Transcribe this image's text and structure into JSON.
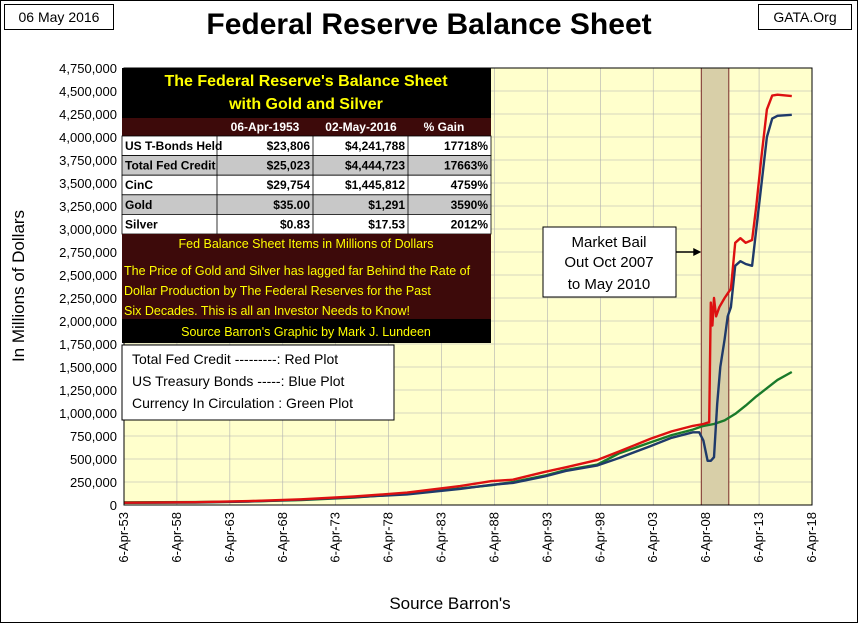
{
  "header": {
    "date": "06 May 2016",
    "site": "GATA.Org"
  },
  "chart_data": {
    "type": "line",
    "title": "Federal Reserve Balance Sheet",
    "xlabel": "Source Barron's",
    "ylabel": "In  Millions of Dollars",
    "xlim": [
      1953.26,
      2018.26
    ],
    "ylim": [
      0,
      4750000
    ],
    "y_ticks": [
      0,
      250000,
      500000,
      750000,
      1000000,
      1250000,
      1500000,
      1750000,
      2000000,
      2250000,
      2500000,
      2750000,
      3000000,
      3250000,
      3500000,
      3750000,
      4000000,
      4250000,
      4500000,
      4750000
    ],
    "y_tick_labels": [
      "0",
      "250,000",
      "500,000",
      "750,000",
      "1,000,000",
      "1,250,000",
      "1,500,000",
      "1,750,000",
      "2,000,000",
      "2,250,000",
      "2,500,000",
      "2,750,000",
      "3,000,000",
      "3,250,000",
      "3,500,000",
      "3,750,000",
      "4,000,000",
      "4,250,000",
      "4,500,000",
      "4,750,000"
    ],
    "x_ticks": [
      1953.26,
      1958.26,
      1963.26,
      1968.26,
      1973.26,
      1978.26,
      1983.26,
      1988.26,
      1993.26,
      1998.26,
      2003.26,
      2008.26,
      2013.26,
      2018.26
    ],
    "x_tick_labels": [
      "6-Apr-53",
      "6-Apr-58",
      "6-Apr-63",
      "6-Apr-68",
      "6-Apr-73",
      "6-Apr-78",
      "6-Apr-83",
      "6-Apr-88",
      "6-Apr-93",
      "6-Apr-98",
      "6-Apr-03",
      "6-Apr-08",
      "6-Apr-13",
      "6-Apr-18"
    ],
    "shaded_region": {
      "x_start": 2007.8,
      "x_end": 2010.4,
      "label": "Market Bail Out Oct 2007 to May 2010"
    },
    "annotation": {
      "lines": [
        "Market Bail",
        "Out Oct 2007",
        "to May 2010"
      ],
      "arrow_to_x": 2007.8,
      "arrow_at_y": 2750000
    },
    "series": [
      {
        "name": "Currency In Circulation",
        "color": "#1a7a2a",
        "x": [
          1953.26,
          1960,
          1965,
          1970,
          1975,
          1980,
          1985,
          1988,
          1990,
          1993,
          1995,
          1998,
          2000,
          2003,
          2005,
          2007,
          2008,
          2009,
          2010,
          2011,
          2012,
          2013,
          2014,
          2015,
          2016.35
        ],
        "y": [
          29754,
          32000,
          39000,
          54000,
          80000,
          125000,
          180000,
          215000,
          250000,
          320000,
          380000,
          440000,
          560000,
          680000,
          760000,
          820000,
          860000,
          880000,
          920000,
          990000,
          1080000,
          1180000,
          1270000,
          1360000,
          1445812
        ]
      },
      {
        "name": "US Treasury Bonds",
        "color": "#1f3a6a",
        "x": [
          1953.26,
          1960,
          1965,
          1970,
          1975,
          1980,
          1985,
          1988,
          1990,
          1993,
          1995,
          1998,
          2000,
          2003,
          2005,
          2007,
          2007.6,
          2008.0,
          2008.4,
          2008.7,
          2009.0,
          2009.3,
          2009.6,
          2010.0,
          2010.3,
          2010.6,
          2011.0,
          2011.5,
          2012.0,
          2012.6,
          2013.0,
          2013.5,
          2014.0,
          2014.5,
          2015.0,
          2016.35
        ],
        "y": [
          23806,
          27000,
          38000,
          58000,
          85000,
          115000,
          175000,
          220000,
          240000,
          310000,
          370000,
          430000,
          510000,
          640000,
          730000,
          790000,
          790000,
          700000,
          480000,
          480000,
          520000,
          1100000,
          1500000,
          1800000,
          2050000,
          2150000,
          2600000,
          2650000,
          2620000,
          2600000,
          3000000,
          3500000,
          4000000,
          4200000,
          4230000,
          4241788
        ]
      },
      {
        "name": "Total Fed Credit",
        "color": "#dd1111",
        "x": [
          1953.26,
          1960,
          1965,
          1970,
          1975,
          1980,
          1985,
          1988,
          1990,
          1993,
          1995,
          1998,
          2000,
          2003,
          2005,
          2007,
          2008.0,
          2008.55,
          2008.7,
          2008.85,
          2009.0,
          2009.2,
          2009.5,
          2010.0,
          2010.3,
          2010.6,
          2011.0,
          2011.5,
          2012.0,
          2012.6,
          2013.0,
          2013.5,
          2014.0,
          2014.5,
          2015.0,
          2016.35
        ],
        "y": [
          25023,
          30000,
          42000,
          62000,
          92000,
          135000,
          205000,
          260000,
          275000,
          360000,
          410000,
          490000,
          580000,
          720000,
          800000,
          860000,
          880000,
          900000,
          2200000,
          1950000,
          2250000,
          2050000,
          2150000,
          2250000,
          2300000,
          2350000,
          2850000,
          2900000,
          2850000,
          2880000,
          3250000,
          3800000,
          4300000,
          4450000,
          4460000,
          4444723
        ]
      }
    ]
  },
  "table": {
    "title_line1": "The Federal Reserve's Balance Sheet",
    "title_line2": "with Gold and Silver",
    "col_headers": [
      "06-Apr-1953",
      "02-May-2016",
      "% Gain"
    ],
    "rows": [
      {
        "label": "US T-Bonds Held",
        "v1": "$23,806",
        "v2": "$4,241,788",
        "gain": "17718%"
      },
      {
        "label": "Total Fed Credit",
        "v1": "$25,023",
        "v2": "$4,444,723",
        "gain": "17663%"
      },
      {
        "label": "CinC",
        "v1": "$29,754",
        "v2": "$1,445,812",
        "gain": "4759%"
      },
      {
        "label": "Gold",
        "v1": "$35.00",
        "v2": "$1,291",
        "gain": "3590%"
      },
      {
        "label": "Silver",
        "v1": "$0.83",
        "v2": "$17.53",
        "gain": "2012%"
      }
    ],
    "note_units": "Fed Balance Sheet Items in Millions of Dollars",
    "note_lines": [
      "The Price of Gold and Silver has lagged far Behind the Rate of",
      "Dollar Production by The Federal Reserves for the Past",
      "Six Decades.  This is all an Investor Needs to Know!"
    ],
    "source": "Source Barron's   Graphic by Mark J. Lundeen"
  },
  "legend": {
    "lines": [
      "Total Fed Credit ---------:    Red Plot",
      "US Treasury Bonds -----:    Blue Plot",
      "Currency In Circulation : Green Plot"
    ]
  },
  "colors": {
    "plot_bg": "#ffffcc",
    "shade": "#d8cfa8",
    "shade_border": "#7a2a2a",
    "table_bg": "#000000",
    "table_sub_bg": "#3d0a0a",
    "row_light": "#ffffff",
    "row_gray": "#c8c8c8"
  }
}
